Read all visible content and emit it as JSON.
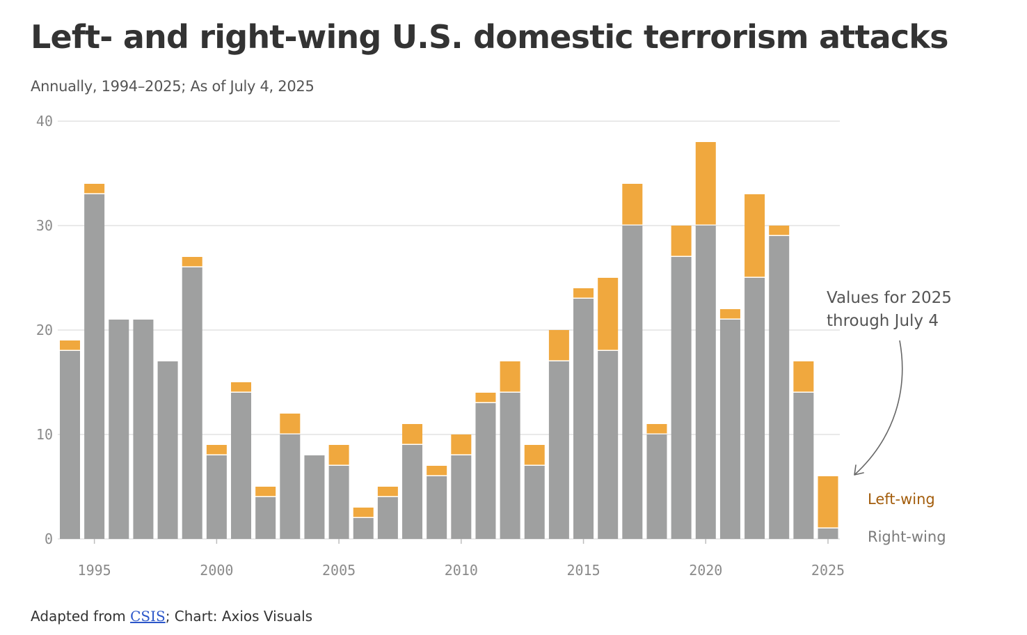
{
  "title": "Left- and right-wing U.S. domestic terrorism attacks",
  "subtitle": "Annually, 1994–2025; As of July 4, 2025",
  "footer": {
    "prefix": "Adapted from ",
    "source_link": "CSIS",
    "suffix": "; Chart: Axios Visuals"
  },
  "colors": {
    "left_wing": "#f0a83e",
    "right_wing": "#9fa0a0",
    "left_wing_label": "#a35d0c",
    "right_wing_label": "#7a7a7a"
  },
  "chart_data": {
    "type": "bar",
    "stacked": true,
    "title": "Left- and right-wing U.S. domestic terrorism attacks",
    "subtitle": "Annually, 1994–2025; As of July 4, 2025",
    "xlabel": "",
    "ylabel": "",
    "ylim": [
      0,
      40
    ],
    "yticks": [
      0,
      10,
      20,
      30,
      40
    ],
    "xticks": [
      1995,
      2000,
      2005,
      2010,
      2015,
      2020,
      2025
    ],
    "grid": "horizontal",
    "legend": "right-bottom",
    "categories": [
      1994,
      1995,
      1996,
      1997,
      1998,
      1999,
      2000,
      2001,
      2002,
      2003,
      2004,
      2005,
      2006,
      2007,
      2008,
      2009,
      2010,
      2011,
      2012,
      2013,
      2014,
      2015,
      2016,
      2017,
      2018,
      2019,
      2020,
      2021,
      2022,
      2023,
      2024,
      2025
    ],
    "series": [
      {
        "name": "Right-wing",
        "values": [
          18,
          33,
          21,
          21,
          17,
          26,
          8,
          14,
          4,
          10,
          8,
          7,
          2,
          4,
          9,
          6,
          8,
          13,
          14,
          7,
          17,
          23,
          18,
          30,
          10,
          27,
          30,
          21,
          25,
          29,
          14,
          1
        ]
      },
      {
        "name": "Left-wing",
        "values": [
          1,
          1,
          0,
          0,
          0,
          1,
          1,
          1,
          1,
          2,
          0,
          2,
          1,
          1,
          2,
          1,
          2,
          1,
          3,
          2,
          3,
          1,
          7,
          4,
          1,
          3,
          8,
          1,
          8,
          1,
          3,
          5
        ]
      }
    ],
    "annotation": {
      "line1": "Values for 2025",
      "line2": "through July 4",
      "target_year": 2025
    }
  }
}
